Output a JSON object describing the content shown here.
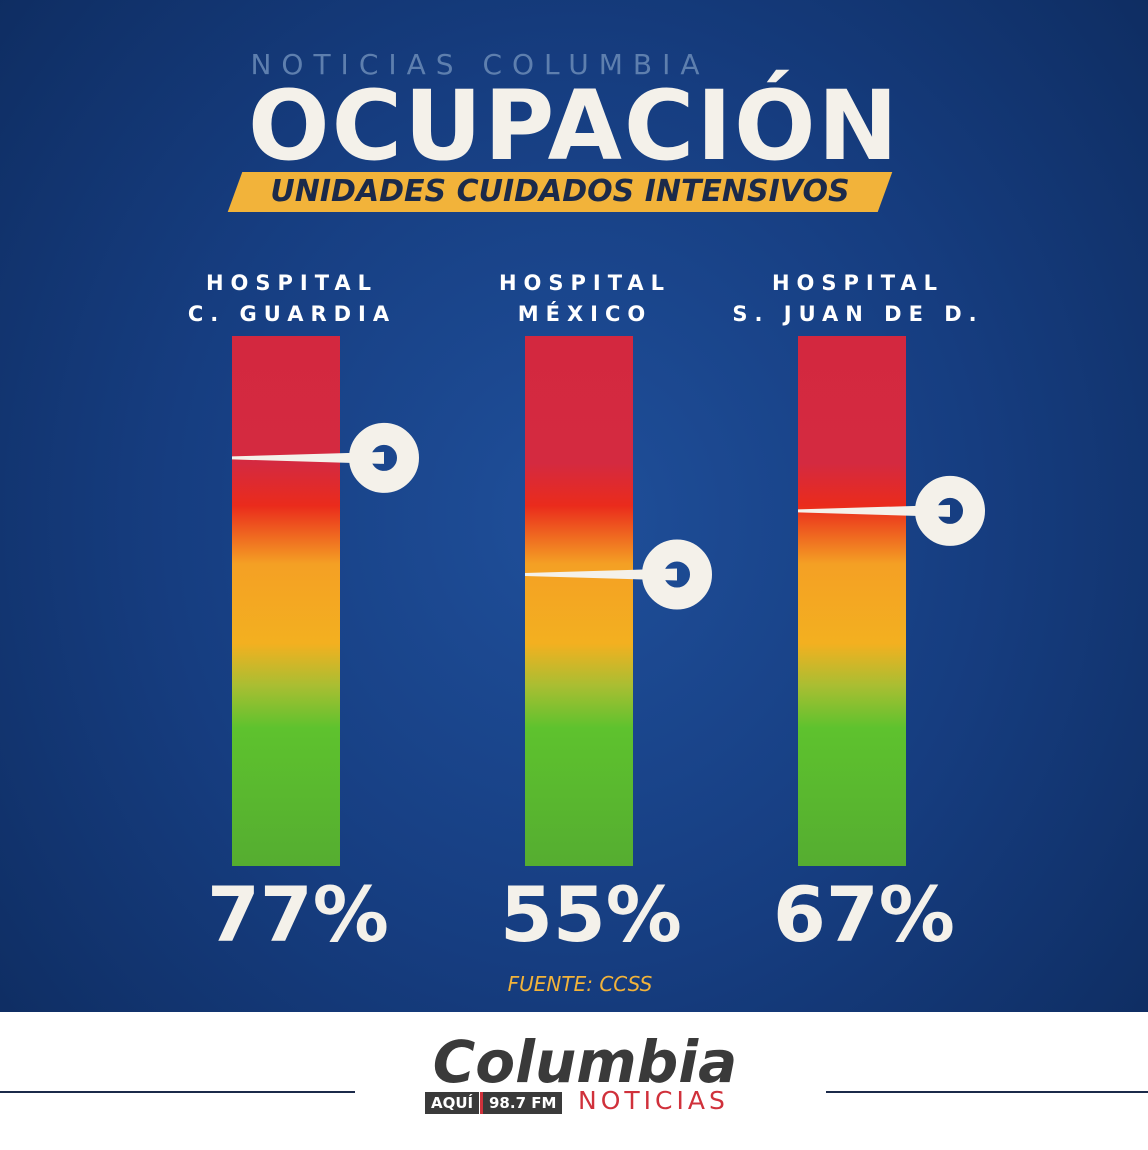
{
  "brand": "NOTICIAS COLUMBIA",
  "chart_data": {
    "type": "gauge",
    "title": "OCUPACIÓN",
    "subtitle": "UNIDADES CUIDADOS INTENSIVOS",
    "categories": [
      "HOSPITAL\nC. GUARDIA",
      "HOSPITAL\nMÉXICO",
      "HOSPITAL\nS. JUAN DE D."
    ],
    "values": [
      77,
      55,
      67
    ],
    "value_labels": [
      "77%",
      "55%",
      "67%"
    ],
    "source": "FUENTE: CCSS"
  },
  "footer": {
    "logo": "Columbia",
    "tag1": "AQUÍ",
    "tag2": "98.7 FM",
    "tag3": "NOTICIAS"
  }
}
